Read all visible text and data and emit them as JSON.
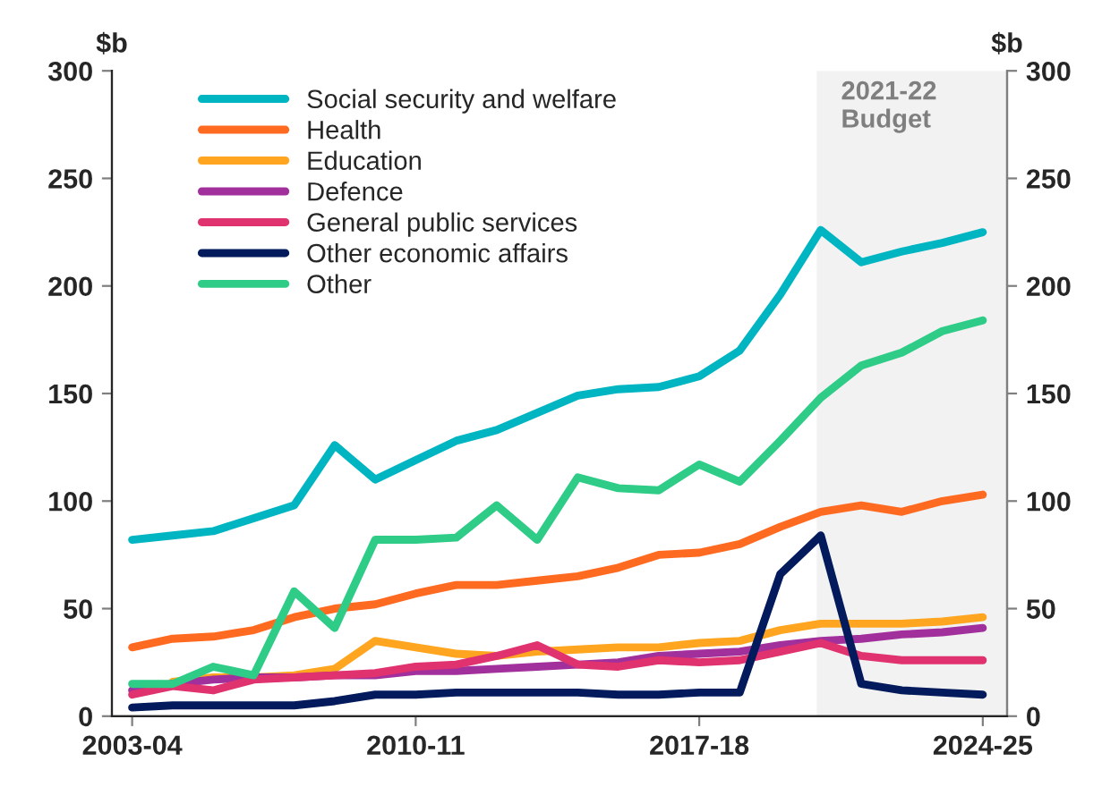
{
  "chart_data": {
    "type": "line",
    "categories": [
      "2003-04",
      null,
      null,
      null,
      null,
      null,
      null,
      "2010-11",
      null,
      null,
      null,
      null,
      null,
      null,
      "2017-18",
      null,
      null,
      null,
      null,
      null,
      null,
      "2024-25"
    ],
    "series": [
      {
        "name": "Social security and welfare",
        "color": "#00b5c2",
        "values": [
          82,
          84,
          86,
          92,
          98,
          126,
          110,
          119,
          128,
          133,
          141,
          149,
          152,
          153,
          158,
          170,
          196,
          226,
          211,
          216,
          220,
          225
        ]
      },
      {
        "name": "Health",
        "color": "#ff6a21",
        "values": [
          32,
          36,
          37,
          40,
          46,
          50,
          52,
          57,
          61,
          61,
          63,
          65,
          69,
          75,
          76,
          80,
          88,
          95,
          98,
          95,
          100,
          103
        ]
      },
      {
        "name": "Education",
        "color": "#ffa51f",
        "values": [
          null,
          16,
          18,
          18,
          19,
          22,
          35,
          32,
          29,
          28,
          30,
          31,
          32,
          32,
          34,
          35,
          40,
          43,
          43,
          43,
          44,
          46
        ]
      },
      {
        "name": "Defence",
        "color": "#a2309c",
        "values": [
          12,
          15,
          17,
          18,
          18,
          19,
          19,
          21,
          21,
          22,
          23,
          24,
          25,
          28,
          29,
          30,
          33,
          35,
          36,
          38,
          39,
          41
        ]
      },
      {
        "name": "General public services",
        "color": "#e0326e",
        "values": [
          10,
          14,
          12,
          17,
          18,
          19,
          20,
          23,
          24,
          28,
          33,
          24,
          23,
          26,
          25,
          26,
          30,
          34,
          28,
          26,
          26,
          26
        ]
      },
      {
        "name": "Other economic affairs",
        "color": "#031b5c",
        "values": [
          4,
          5,
          5,
          5,
          5,
          7,
          10,
          10,
          11,
          11,
          11,
          11,
          10,
          10,
          11,
          11,
          66,
          84,
          15,
          12,
          11,
          10
        ]
      },
      {
        "name": "Other",
        "color": "#2ecc87",
        "values": [
          15,
          15,
          23,
          19,
          58,
          41,
          82,
          82,
          83,
          98,
          82,
          111,
          106,
          105,
          117,
          109,
          128,
          148,
          163,
          169,
          179,
          184
        ]
      }
    ],
    "ylabel": "$b",
    "y2label": "$b",
    "ylim": [
      0,
      300
    ],
    "yticks": [
      0,
      50,
      100,
      150,
      200,
      250,
      300
    ],
    "y2lim": [
      0,
      300
    ],
    "y2ticks": [
      0,
      50,
      100,
      150,
      200,
      250,
      300
    ],
    "annotations": [
      "2021-22\nBudget"
    ],
    "legend": "top left",
    "grid": false,
    "marker": "none",
    "line_style": "solid"
  }
}
